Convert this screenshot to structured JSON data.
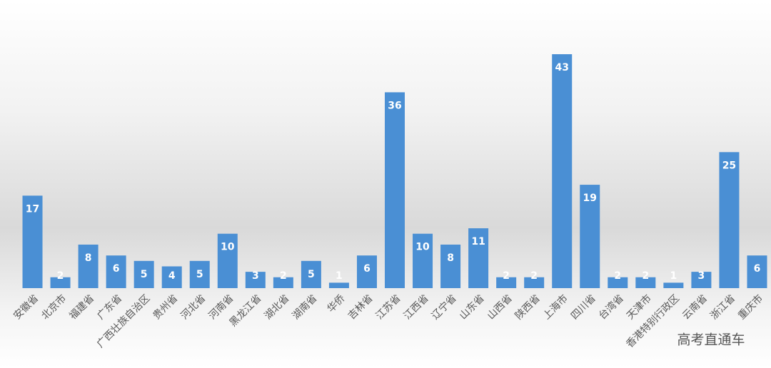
{
  "chart_data": {
    "type": "bar",
    "categories": [
      "安徽省",
      "北京市",
      "福建省",
      "广东省",
      "广西壮族自治区",
      "贵州省",
      "河北省",
      "河南省",
      "黑龙江省",
      "湖北省",
      "湖南省",
      "华侨",
      "吉林省",
      "江苏省",
      "江西省",
      "辽宁省",
      "山东省",
      "山西省",
      "陕西省",
      "上海市",
      "四川省",
      "台湾省",
      "天津市",
      "香港特别行政区",
      "云南省",
      "浙江省",
      "重庆市"
    ],
    "values": [
      17,
      2,
      8,
      6,
      5,
      4,
      5,
      10,
      3,
      2,
      5,
      1,
      6,
      36,
      10,
      8,
      11,
      2,
      2,
      43,
      19,
      2,
      2,
      1,
      3,
      25,
      6
    ],
    "color": "#4a8fd4"
  },
  "watermark": "高考直通车"
}
